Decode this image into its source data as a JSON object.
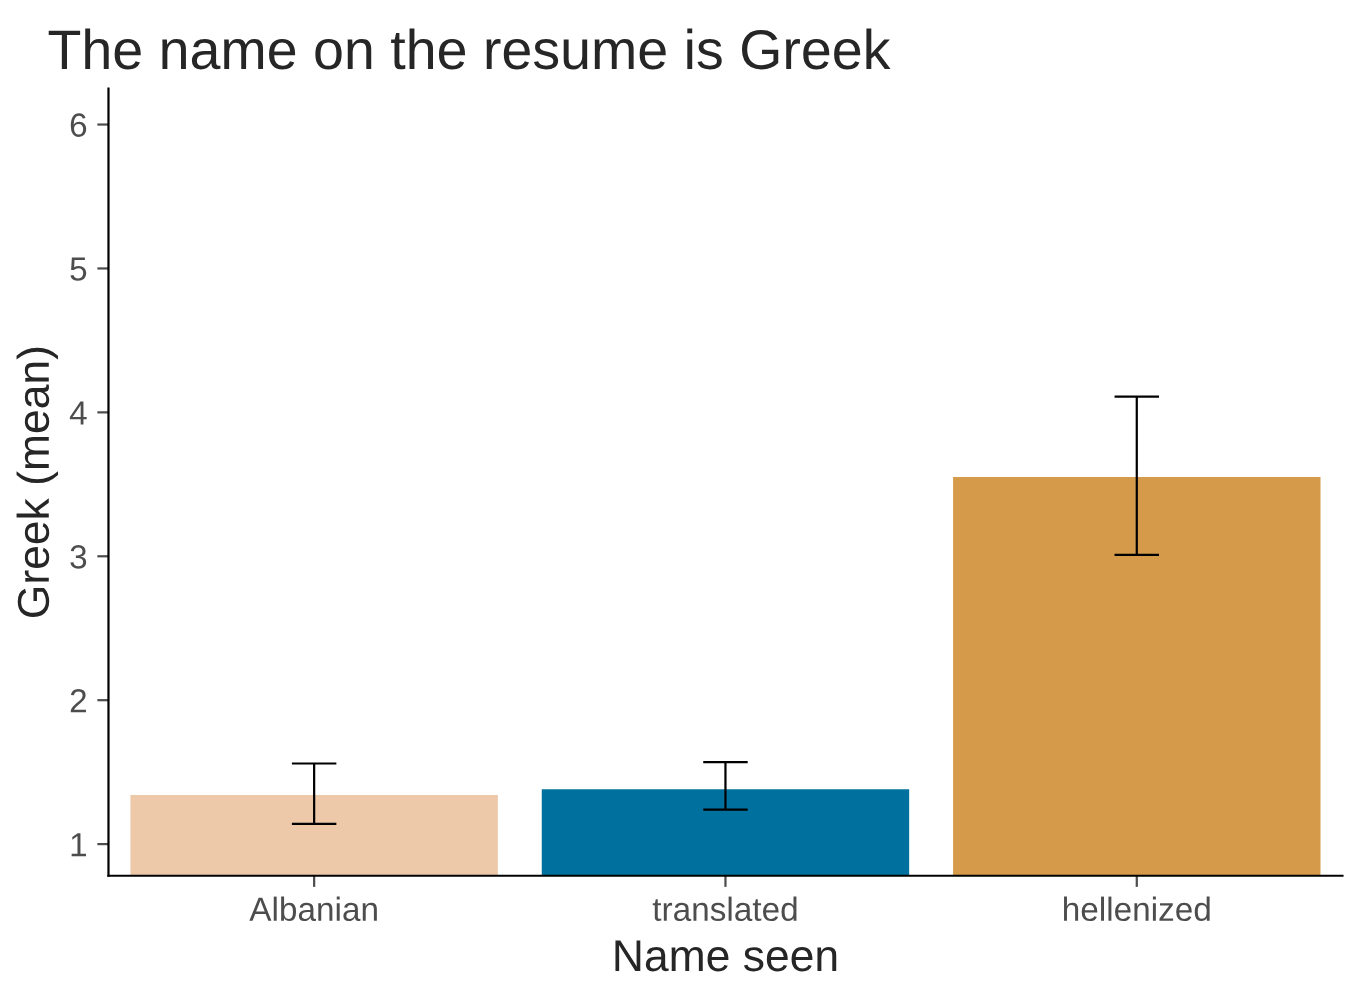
{
  "chart_data": {
    "type": "bar",
    "title": "The name on the resume is Greek",
    "xlabel": "Name seen",
    "ylabel": "Greek (mean)",
    "categories": [
      "Albanian",
      "translated",
      "hellenized"
    ],
    "values": [
      1.35,
      1.39,
      3.56
    ],
    "errors": [
      [
        1.14,
        1.56
      ],
      [
        1.24,
        1.57
      ],
      [
        3.01,
        4.11
      ]
    ],
    "colors": [
      "#edc9aa",
      "#00709e",
      "#d59b4b"
    ],
    "ylim": [
      0.78,
      6.25
    ],
    "yticks": [
      1,
      2,
      3,
      4,
      5,
      6
    ],
    "grid": false,
    "legend": false
  }
}
